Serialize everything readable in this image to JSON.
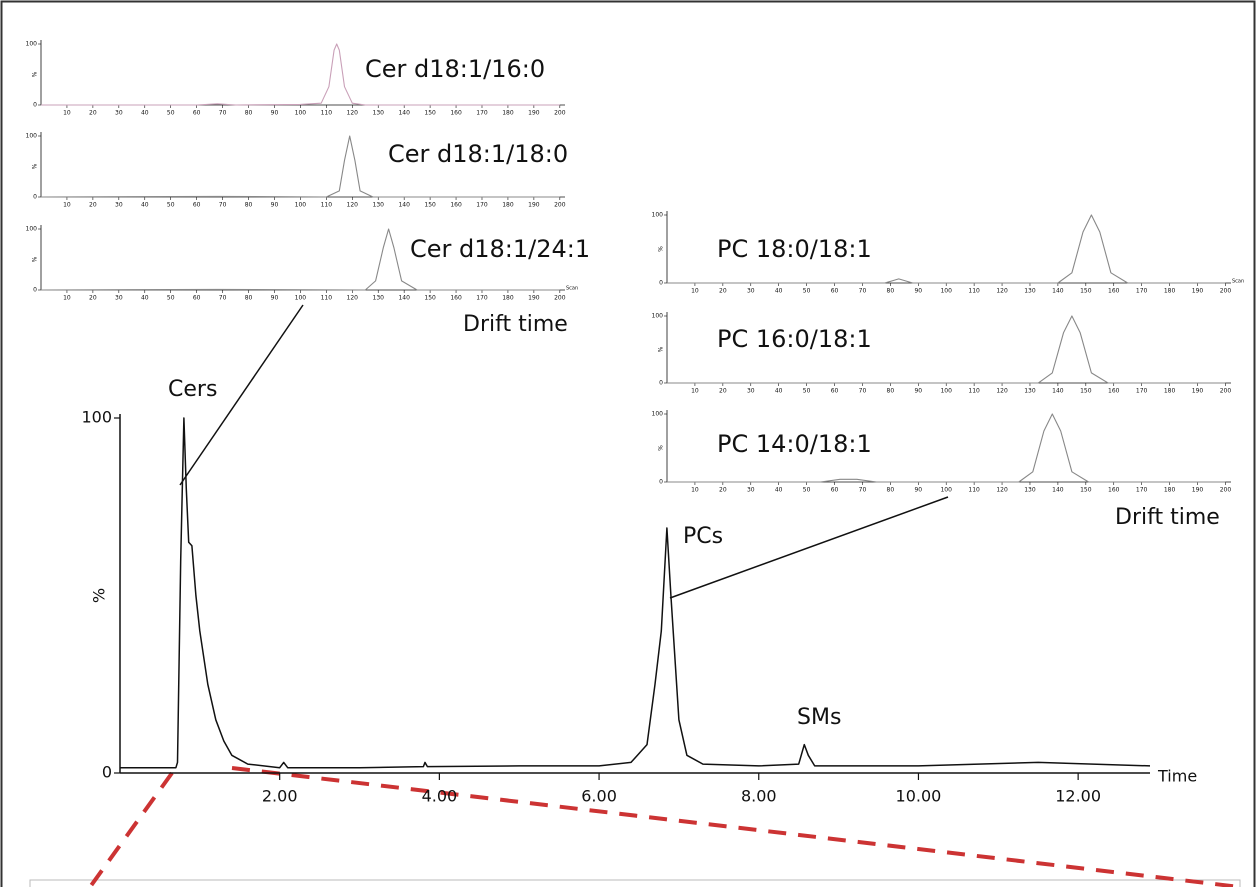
{
  "chart_data": [
    {
      "type": "line",
      "xlabel": "Time",
      "ylabel": "%",
      "annotations": [
        "Cers",
        "PCs",
        "SMs"
      ],
      "xlim": [
        0,
        12.9
      ],
      "ylim": [
        0,
        100
      ],
      "xticks": [
        {
          "value": 2,
          "label": "2.00"
        },
        {
          "value": 4,
          "label": "4.00"
        },
        {
          "value": 6,
          "label": "6.00"
        },
        {
          "value": 8,
          "label": "8.00"
        },
        {
          "value": 10,
          "label": "10.00"
        },
        {
          "value": 12,
          "label": "12.00"
        }
      ],
      "yticks": [
        0,
        100
      ],
      "color": "#111111",
      "x": [
        0,
        0.7,
        0.72,
        0.76,
        0.8,
        0.83,
        0.86,
        0.9,
        0.95,
        1.0,
        1.1,
        1.2,
        1.3,
        1.4,
        1.6,
        2.0,
        2.05,
        2.1,
        3.0,
        3.8,
        3.82,
        3.85,
        5.0,
        6.0,
        6.4,
        6.6,
        6.7,
        6.78,
        6.85,
        6.9,
        7.0,
        7.1,
        7.3,
        8.0,
        8.5,
        8.57,
        8.62,
        8.7,
        10.0,
        11.5,
        12.9
      ],
      "values": [
        1.5,
        1.5,
        3,
        60,
        100,
        80,
        65,
        64,
        50,
        40,
        25,
        15,
        9,
        5,
        2.5,
        1.5,
        3,
        1.5,
        1.5,
        1.8,
        3,
        1.8,
        2,
        2,
        3,
        8,
        25,
        40,
        69,
        50,
        15,
        5,
        2.5,
        2,
        2.5,
        8,
        5,
        2,
        2,
        3,
        2
      ]
    },
    {
      "type": "line",
      "title": "Cer d18:1/16:0",
      "ylabel": "%",
      "xlim": [
        0,
        202
      ],
      "ylim": [
        0,
        100
      ],
      "xticks": [
        10,
        20,
        30,
        40,
        50,
        60,
        70,
        80,
        90,
        100,
        110,
        120,
        130,
        140,
        150,
        160,
        170,
        180,
        190,
        200
      ],
      "yticks": [
        0,
        100
      ],
      "color": "#c9a0b8",
      "x": [
        0,
        60,
        68,
        75,
        100,
        108,
        111,
        113,
        114,
        115,
        117,
        120,
        125,
        200
      ],
      "values": [
        0,
        0,
        2,
        0,
        1,
        3,
        30,
        90,
        100,
        90,
        30,
        3,
        0,
        0
      ]
    },
    {
      "type": "line",
      "title": "Cer d18:1/18:0",
      "ylabel": "%",
      "xlim": [
        0,
        202
      ],
      "ylim": [
        0,
        100
      ],
      "xticks": [
        10,
        20,
        30,
        40,
        50,
        60,
        70,
        80,
        90,
        100,
        110,
        120,
        130,
        140,
        150,
        160,
        170,
        180,
        190,
        200
      ],
      "yticks": [
        0,
        100
      ],
      "color": "#888888",
      "x": [
        0,
        68,
        110,
        115,
        117,
        119,
        121,
        123,
        128,
        200
      ],
      "values": [
        0,
        1,
        0,
        10,
        60,
        100,
        60,
        10,
        0,
        0
      ]
    },
    {
      "type": "line",
      "title": "Cer d18:1/24:1",
      "ylabel": "%",
      "xlabel": "Drift time",
      "scan_label": "Scan",
      "xlim": [
        0,
        202
      ],
      "ylim": [
        0,
        100
      ],
      "xticks": [
        10,
        20,
        30,
        40,
        50,
        60,
        70,
        80,
        90,
        100,
        110,
        120,
        130,
        140,
        150,
        160,
        170,
        180,
        190,
        200
      ],
      "yticks": [
        0,
        100
      ],
      "color": "#888888",
      "x": [
        0,
        68,
        125,
        129,
        132,
        134,
        136,
        139,
        145,
        200
      ],
      "values": [
        0,
        1,
        0,
        15,
        70,
        100,
        70,
        15,
        0,
        0
      ]
    },
    {
      "type": "line",
      "title": "PC 18:0/18:1",
      "ylabel": "%",
      "scan_label": "Scan",
      "xlim": [
        0,
        202
      ],
      "ylim": [
        0,
        100
      ],
      "xticks": [
        10,
        20,
        30,
        40,
        50,
        60,
        70,
        80,
        90,
        100,
        110,
        120,
        130,
        140,
        150,
        160,
        170,
        180,
        190,
        200
      ],
      "yticks": [
        0,
        100
      ],
      "color": "#888888",
      "x": [
        0,
        78,
        83,
        88,
        140,
        145,
        149,
        152,
        155,
        159,
        165,
        200
      ],
      "values": [
        0,
        0,
        6,
        0,
        0,
        15,
        75,
        100,
        75,
        15,
        0,
        0
      ]
    },
    {
      "type": "line",
      "title": "PC 16:0/18:1",
      "ylabel": "%",
      "xlim": [
        0,
        202
      ],
      "ylim": [
        0,
        100
      ],
      "xticks": [
        10,
        20,
        30,
        40,
        50,
        60,
        70,
        80,
        90,
        100,
        110,
        120,
        130,
        140,
        150,
        160,
        170,
        180,
        190,
        200
      ],
      "yticks": [
        0,
        100
      ],
      "color": "#888888",
      "x": [
        0,
        133,
        138,
        142,
        145,
        148,
        152,
        158,
        200
      ],
      "values": [
        0,
        0,
        15,
        75,
        100,
        75,
        15,
        0,
        0
      ]
    },
    {
      "type": "line",
      "title": "PC 14:0/18:1",
      "ylabel": "%",
      "xlabel": "Drift time",
      "xlim": [
        0,
        202
      ],
      "ylim": [
        0,
        100
      ],
      "xticks": [
        10,
        20,
        30,
        40,
        50,
        60,
        70,
        80,
        90,
        100,
        110,
        120,
        130,
        140,
        150,
        160,
        170,
        180,
        190,
        200
      ],
      "yticks": [
        0,
        100
      ],
      "color": "#888888",
      "x": [
        0,
        55,
        62,
        68,
        75,
        126,
        131,
        135,
        138,
        141,
        145,
        151,
        200
      ],
      "values": [
        0,
        0,
        4,
        4,
        0,
        0,
        15,
        75,
        100,
        75,
        15,
        0,
        0
      ]
    }
  ]
}
